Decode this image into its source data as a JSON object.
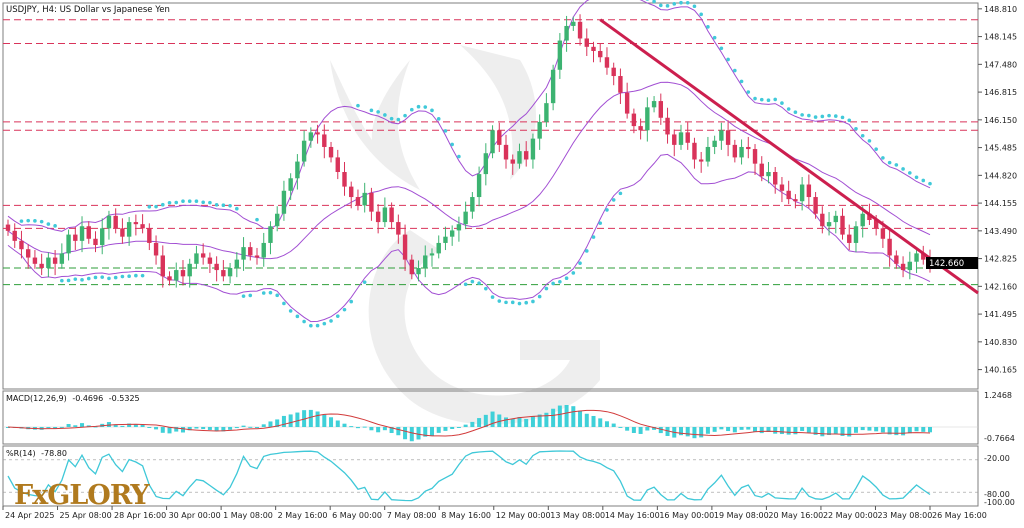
{
  "chart_data": [
    {
      "type": "candlestick",
      "title": "USDJPY, H4:  US Dollar vs Japanese Yen",
      "current_price": "142.660",
      "ylim": [
        139.7,
        148.95
      ],
      "y_ticks": [
        "148.810",
        "148.145",
        "147.480",
        "146.815",
        "146.150",
        "145.485",
        "144.820",
        "144.155",
        "143.490",
        "142.825",
        "142.160",
        "141.495",
        "140.830",
        "140.165"
      ],
      "x_ticks": [
        "24 Apr 2025",
        "25 Apr 08:00",
        "28 Apr 16:00",
        "30 Apr 00:00",
        "1 May 08:00",
        "2 May 16:00",
        "6 May 00:00",
        "7 May 08:00",
        "8 May 16:00",
        "12 May 00:00",
        "13 May 08:00",
        "14 May 16:00",
        "16 May 00:00",
        "19 May 08:00",
        "20 May 16:00",
        "22 May 00:00",
        "23 May 08:00",
        "26 May 16:00"
      ],
      "horizontal_levels": [
        {
          "value": 148.55,
          "color": "#d9335a",
          "style": "dashed"
        },
        {
          "value": 147.98,
          "color": "#d9335a",
          "style": "dashed"
        },
        {
          "value": 146.1,
          "color": "#d9335a",
          "style": "dashed"
        },
        {
          "value": 145.9,
          "color": "#d9335a",
          "style": "dashed"
        },
        {
          "value": 144.1,
          "color": "#d9335a",
          "style": "dashed"
        },
        {
          "value": 143.55,
          "color": "#d9335a",
          "style": "dashed"
        },
        {
          "value": 142.6,
          "color": "#2e9e3a",
          "style": "dashed"
        },
        {
          "value": 142.2,
          "color": "#2e9e3a",
          "style": "dashed"
        }
      ],
      "trendline": {
        "from": [
          88,
          148.55
        ],
        "to": [
          163,
          142.0
        ],
        "color": "#cc1f4e"
      },
      "series_candles": [
        143.49,
        143.25,
        143.05,
        142.85,
        142.7,
        142.6,
        142.85,
        142.7,
        142.95,
        143.4,
        143.25,
        143.6,
        143.3,
        143.15,
        143.55,
        143.85,
        143.55,
        143.35,
        143.7,
        143.65,
        143.55,
        143.2,
        142.9,
        142.4,
        142.3,
        142.55,
        142.4,
        142.7,
        142.95,
        142.85,
        142.7,
        142.55,
        142.4,
        142.6,
        142.8,
        143.1,
        142.9,
        142.85,
        143.2,
        143.6,
        143.9,
        144.45,
        144.75,
        145.15,
        145.65,
        145.85,
        145.8,
        145.5,
        145.25,
        144.9,
        144.55,
        144.3,
        144.1,
        144.4,
        143.95,
        143.7,
        144.05,
        143.7,
        143.4,
        142.8,
        142.45,
        142.6,
        142.9,
        142.95,
        143.2,
        143.35,
        143.5,
        143.65,
        143.95,
        144.3,
        144.85,
        145.35,
        145.9,
        145.55,
        145.2,
        145.1,
        145.4,
        145.2,
        145.7,
        146.1,
        146.55,
        147.35,
        148.05,
        148.4,
        148.5,
        148.1,
        147.9,
        147.8,
        147.65,
        147.4,
        147.2,
        146.8,
        146.3,
        146.0,
        145.9,
        146.45,
        146.6,
        146.2,
        145.8,
        145.55,
        145.85,
        145.6,
        145.2,
        145.15,
        145.5,
        145.65,
        145.9,
        145.55,
        145.25,
        145.5,
        145.45,
        145.1,
        144.8,
        144.9,
        144.6,
        144.45,
        144.25,
        144.2,
        144.6,
        144.3,
        143.9,
        143.6,
        143.7,
        143.85,
        143.4,
        143.2,
        143.6,
        143.9,
        143.75,
        143.55,
        143.3,
        142.9,
        142.7,
        142.55,
        142.75,
        142.95,
        142.8,
        142.66
      ],
      "indicators": [
        {
          "name": "MACD(12,26,9)",
          "values": [
            "-0.4696",
            "-0.5325"
          ],
          "ticks": [
            "1.2468",
            "-0.7664"
          ]
        },
        {
          "name": "%R(14)",
          "values": [
            "-78.80"
          ],
          "ticks": [
            "-20.00",
            "-80.00",
            "-100.00"
          ]
        }
      ]
    }
  ],
  "colors": {
    "bull": "#3cb371",
    "bear": "#d9335a",
    "bollinger": "#a24fd3",
    "psar": "#40c9d9",
    "macd_hist": "#3fd0d8",
    "macd_signal": "#d23b3b",
    "wr_line": "#3fc8d8"
  },
  "logo": {
    "text": "FxGLORY"
  }
}
